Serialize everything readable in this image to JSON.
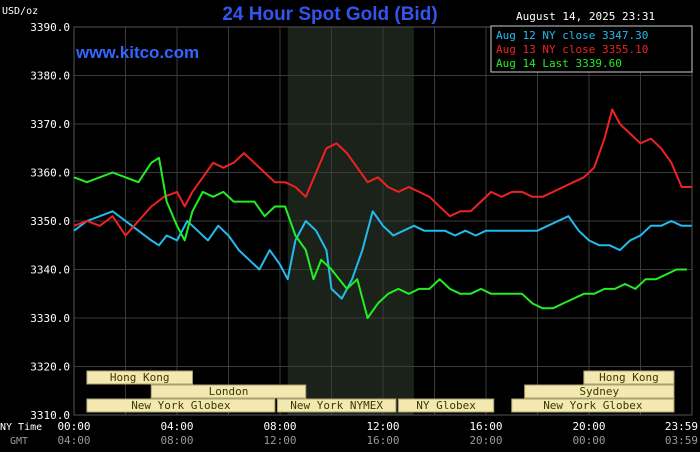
{
  "chart_data": {
    "type": "line",
    "title": "24 Hour Spot Gold (Bid)",
    "ylabel": "USD/oz",
    "watermark": "www.kitco.com",
    "timestamp": "August 14, 2025 23:31",
    "ylim": [
      3310,
      3390
    ],
    "yticks": [
      "3310.0",
      "3320.0",
      "3330.0",
      "3340.0",
      "3350.0",
      "3360.0",
      "3370.0",
      "3380.0",
      "3390.0"
    ],
    "xlim": [
      0,
      24
    ],
    "row_labels": {
      "ny": "NY Time",
      "gmt": "GMT"
    },
    "xticks_ny": [
      "00:00",
      "04:00",
      "08:00",
      "12:00",
      "16:00",
      "20:00",
      "23:59"
    ],
    "xticks_gmt": [
      "04:00",
      "08:00",
      "12:00",
      "16:00",
      "20:00",
      "00:00",
      "03:59"
    ],
    "grid": true,
    "legend_position": "top-right",
    "colors": {
      "background": "#000000",
      "grid": "#3a3a3a",
      "axis_text": "#ffffff",
      "title": "#3355ee",
      "watermark": "#3366ff",
      "shade": "#1a2219",
      "session_fill": "#f3e9b0",
      "session_text": "#3a3a00",
      "session_stroke": "#aaa070"
    },
    "sessions": [
      {
        "label": "Hong Kong",
        "row": 1,
        "start": 0.5,
        "end": 4.6
      },
      {
        "label": "London",
        "row": 2,
        "start": 3.0,
        "end": 9.0
      },
      {
        "label": "New York Globex",
        "row": 3,
        "start": 0.5,
        "end": 7.8
      },
      {
        "label": "New York NYMEX",
        "row": 3,
        "start": 7.9,
        "end": 12.5
      },
      {
        "label": "NY Globex",
        "row": 3,
        "start": 12.6,
        "end": 16.3
      },
      {
        "label": "Hong Kong",
        "row": 1,
        "start": 19.8,
        "end": 23.3
      },
      {
        "label": "Sydney",
        "row": 2,
        "start": 17.5,
        "end": 23.3
      },
      {
        "label": "New York Globex",
        "row": 3,
        "start": 17.0,
        "end": 23.3
      }
    ],
    "shaded_span": [
      8.3,
      13.2
    ],
    "series": [
      {
        "name": "Aug 12 NY close 3347.30",
        "color": "#22bbee",
        "x": [
          0,
          0.5,
          1,
          1.5,
          2,
          2.5,
          3,
          3.3,
          3.6,
          4,
          4.4,
          4.8,
          5.2,
          5.6,
          6,
          6.4,
          6.8,
          7.2,
          7.6,
          8,
          8.3,
          8.6,
          9,
          9.4,
          9.8,
          10,
          10.4,
          10.8,
          11.2,
          11.6,
          12,
          12.4,
          12.8,
          13.2,
          13.6,
          14,
          14.4,
          14.8,
          15.2,
          15.6,
          16,
          16.4,
          16.8,
          17.2,
          17.6,
          18,
          18.4,
          18.8,
          19.2,
          19.6,
          20,
          20.4,
          20.8,
          21.2,
          21.6,
          22,
          22.4,
          22.8,
          23.2,
          23.6,
          23.99
        ],
        "y": [
          3348,
          3350,
          3351,
          3352,
          3350,
          3348,
          3346,
          3345,
          3347,
          3346,
          3350,
          3348,
          3346,
          3349,
          3347,
          3344,
          3342,
          3340,
          3344,
          3341,
          3338,
          3346,
          3350,
          3348,
          3344,
          3336,
          3334,
          3338,
          3344,
          3352,
          3349,
          3347,
          3348,
          3349,
          3348,
          3348,
          3348,
          3347,
          3348,
          3347,
          3348,
          3348,
          3348,
          3348,
          3348,
          3348,
          3349,
          3350,
          3351,
          3348,
          3346,
          3345,
          3345,
          3344,
          3346,
          3347,
          3349,
          3349,
          3350,
          3349,
          3349
        ]
      },
      {
        "name": "Aug 13 NY close 3355.10",
        "color": "#ee2222",
        "x": [
          0,
          0.5,
          1,
          1.5,
          2,
          2.5,
          3,
          3.5,
          4,
          4.3,
          4.6,
          5,
          5.4,
          5.8,
          6.2,
          6.6,
          7,
          7.4,
          7.8,
          8.2,
          8.6,
          9,
          9.4,
          9.8,
          10.2,
          10.6,
          11,
          11.4,
          11.8,
          12.2,
          12.6,
          13,
          13.4,
          13.8,
          14.2,
          14.6,
          15,
          15.4,
          15.8,
          16.2,
          16.6,
          17,
          17.4,
          17.8,
          18.2,
          18.6,
          19,
          19.4,
          19.8,
          20.2,
          20.6,
          20.9,
          21.2,
          21.6,
          22,
          22.4,
          22.8,
          23.2,
          23.6,
          23.99
        ],
        "y": [
          3349,
          3350,
          3349,
          3351,
          3347,
          3350,
          3353,
          3355,
          3356,
          3353,
          3356,
          3359,
          3362,
          3361,
          3362,
          3364,
          3362,
          3360,
          3358,
          3358,
          3357,
          3355,
          3360,
          3365,
          3366,
          3364,
          3361,
          3358,
          3359,
          3357,
          3356,
          3357,
          3356,
          3355,
          3353,
          3351,
          3352,
          3352,
          3354,
          3356,
          3355,
          3356,
          3356,
          3355,
          3355,
          3356,
          3357,
          3358,
          3359,
          3361,
          3367,
          3373,
          3370,
          3368,
          3366,
          3367,
          3365,
          3362,
          3357,
          3357
        ]
      },
      {
        "name": "Aug 14 Last 3339.60",
        "color": "#22ee22",
        "x": [
          0,
          0.5,
          1,
          1.5,
          2,
          2.5,
          3,
          3.3,
          3.6,
          4,
          4.3,
          4.6,
          5,
          5.4,
          5.8,
          6.2,
          6.6,
          7,
          7.4,
          7.8,
          8.2,
          8.6,
          9,
          9.3,
          9.6,
          10,
          10.3,
          10.6,
          11,
          11.4,
          11.8,
          12.2,
          12.6,
          13,
          13.4,
          13.8,
          14.2,
          14.6,
          15,
          15.4,
          15.8,
          16.2,
          16.6,
          17,
          17.4,
          17.8,
          18.2,
          18.6,
          19,
          19.4,
          19.8,
          20.2,
          20.6,
          21,
          21.4,
          21.8,
          22.2,
          22.6,
          23,
          23.4,
          23.8
        ],
        "y": [
          3359,
          3358,
          3359,
          3360,
          3359,
          3358,
          3362,
          3363,
          3354,
          3349,
          3346,
          3352,
          3356,
          3355,
          3356,
          3354,
          3354,
          3354,
          3351,
          3353,
          3353,
          3347,
          3344,
          3338,
          3342,
          3340,
          3338,
          3336,
          3338,
          3330,
          3333,
          3335,
          3336,
          3335,
          3336,
          3336,
          3338,
          3336,
          3335,
          3335,
          3336,
          3335,
          3335,
          3335,
          3335,
          3333,
          3332,
          3332,
          3333,
          3334,
          3335,
          3335,
          3336,
          3336,
          3337,
          3336,
          3338,
          3338,
          3339,
          3340,
          3340
        ]
      }
    ]
  }
}
